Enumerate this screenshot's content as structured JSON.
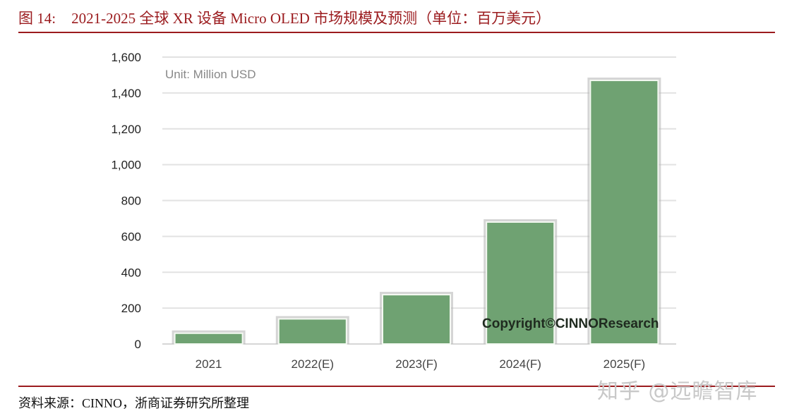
{
  "figure": {
    "number": "图 14:",
    "title": "2021-2025 全球 XR 设备  Micro OLED 市场规模及预测（单位：百万美元）",
    "source": "资料来源：CINNO，浙商证券研究所整理",
    "watermark": "知乎 @远瞻智库"
  },
  "colors": {
    "accent": "#9b1b1e",
    "bar": "#6fa272",
    "grid": "#e2e2e2"
  },
  "chart_data": {
    "type": "bar",
    "title": "",
    "annotation": "Unit: Million USD",
    "copyright": "Copyright©CINNOResearch",
    "xlabel": "",
    "ylabel": "",
    "categories": [
      "2021",
      "2022(E)",
      "2023(F)",
      "2024(F)",
      "2025(F)"
    ],
    "values": [
      60,
      140,
      275,
      680,
      1470
    ],
    "ylim": [
      0,
      1600
    ],
    "yticks": [
      0,
      200,
      400,
      600,
      800,
      1000,
      1200,
      1400,
      1600
    ],
    "ytick_labels": [
      "0",
      "200",
      "400",
      "600",
      "800",
      "1,000",
      "1,200",
      "1,400",
      "1,600"
    ],
    "grid": true,
    "legend": "none"
  }
}
